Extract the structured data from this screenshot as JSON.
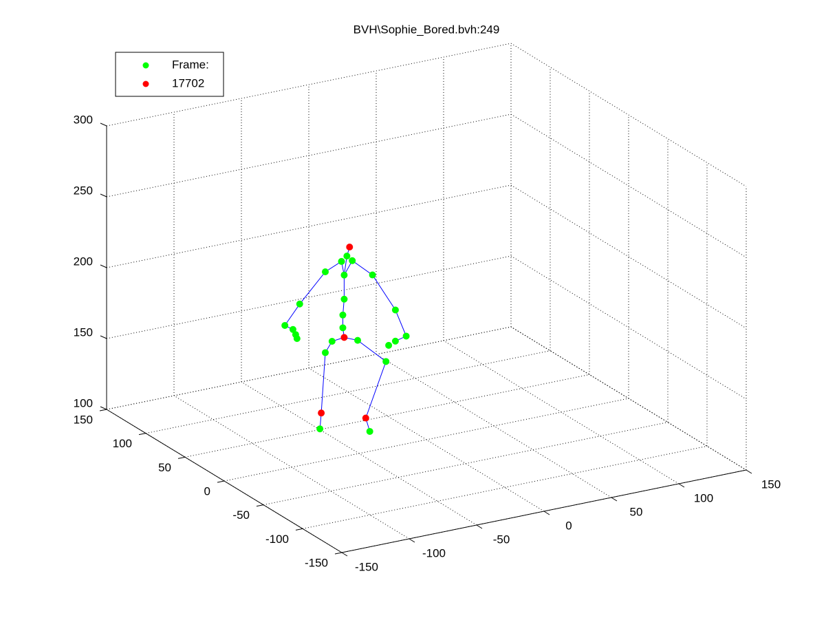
{
  "chart_data": {
    "type": "scatter3d",
    "title": "BVH\\Sophie_Bored.bvh:249",
    "xlim": [
      -150,
      150
    ],
    "xticks": [
      -150,
      -100,
      -50,
      0,
      50,
      100,
      150
    ],
    "ylim": [
      -150,
      150
    ],
    "yticks": [
      -150,
      -100,
      -50,
      0,
      50,
      100,
      150
    ],
    "zlim": [
      100,
      300
    ],
    "zticks": [
      100,
      150,
      200,
      250,
      300
    ],
    "grid": true,
    "legend": "upper left",
    "series": [
      {
        "name": "Frame:",
        "color": "#00ff00",
        "mode": "markers",
        "x": [
          -62,
          -62,
          -61,
          -61,
          -59,
          -63,
          -55,
          -75,
          -94,
          -105,
          -99,
          -97,
          -96,
          -40,
          -23,
          -15,
          -23,
          -28,
          -70,
          -75,
          -79,
          -51,
          -30,
          -42
        ],
        "y": [
          0,
          0,
          0,
          0,
          0,
          0,
          0,
          0,
          0,
          0,
          0,
          0,
          0,
          0,
          0,
          0,
          0,
          0,
          0,
          0,
          0,
          0,
          0,
          0
        ],
        "z": [
          191,
          200,
          211,
          228,
          241,
          238,
          237,
          233,
          214,
          201,
          197,
          193,
          190,
          224,
          196,
          176,
          174,
          172,
          183,
          176,
          123,
          180,
          161,
          114
        ]
      },
      {
        "name": "17702",
        "color": "#ff0000",
        "mode": "markers",
        "x": [
          -61,
          -57,
          -78,
          -45
        ],
        "y": [
          0,
          0,
          0,
          0
        ],
        "z": [
          184,
          247,
          134,
          124
        ]
      },
      {
        "color": "#0000ff",
        "mode": "lines",
        "x": [
          -61,
          -62,
          -62,
          -61,
          -61,
          -59,
          -57,
          null,
          -61,
          -63,
          -75,
          -94,
          -105,
          -99,
          null,
          -61,
          -55,
          -40,
          -23,
          -15,
          -23,
          null,
          -61,
          -70,
          -75,
          -78,
          -79,
          null,
          -61,
          -51,
          -30,
          -45,
          -42
        ],
        "y": [
          0,
          0,
          0,
          0,
          0,
          0,
          0,
          null,
          0,
          0,
          0,
          0,
          0,
          0,
          null,
          0,
          0,
          0,
          0,
          0,
          0,
          null,
          0,
          0,
          0,
          0,
          0,
          null,
          0,
          0,
          0,
          0,
          0
        ],
        "z": [
          184,
          191,
          200,
          211,
          228,
          241,
          247,
          null,
          228,
          238,
          233,
          214,
          201,
          197,
          null,
          228,
          237,
          224,
          196,
          176,
          174,
          null,
          184,
          183,
          176,
          134,
          123,
          null,
          184,
          180,
          161,
          124,
          114
        ]
      }
    ]
  }
}
